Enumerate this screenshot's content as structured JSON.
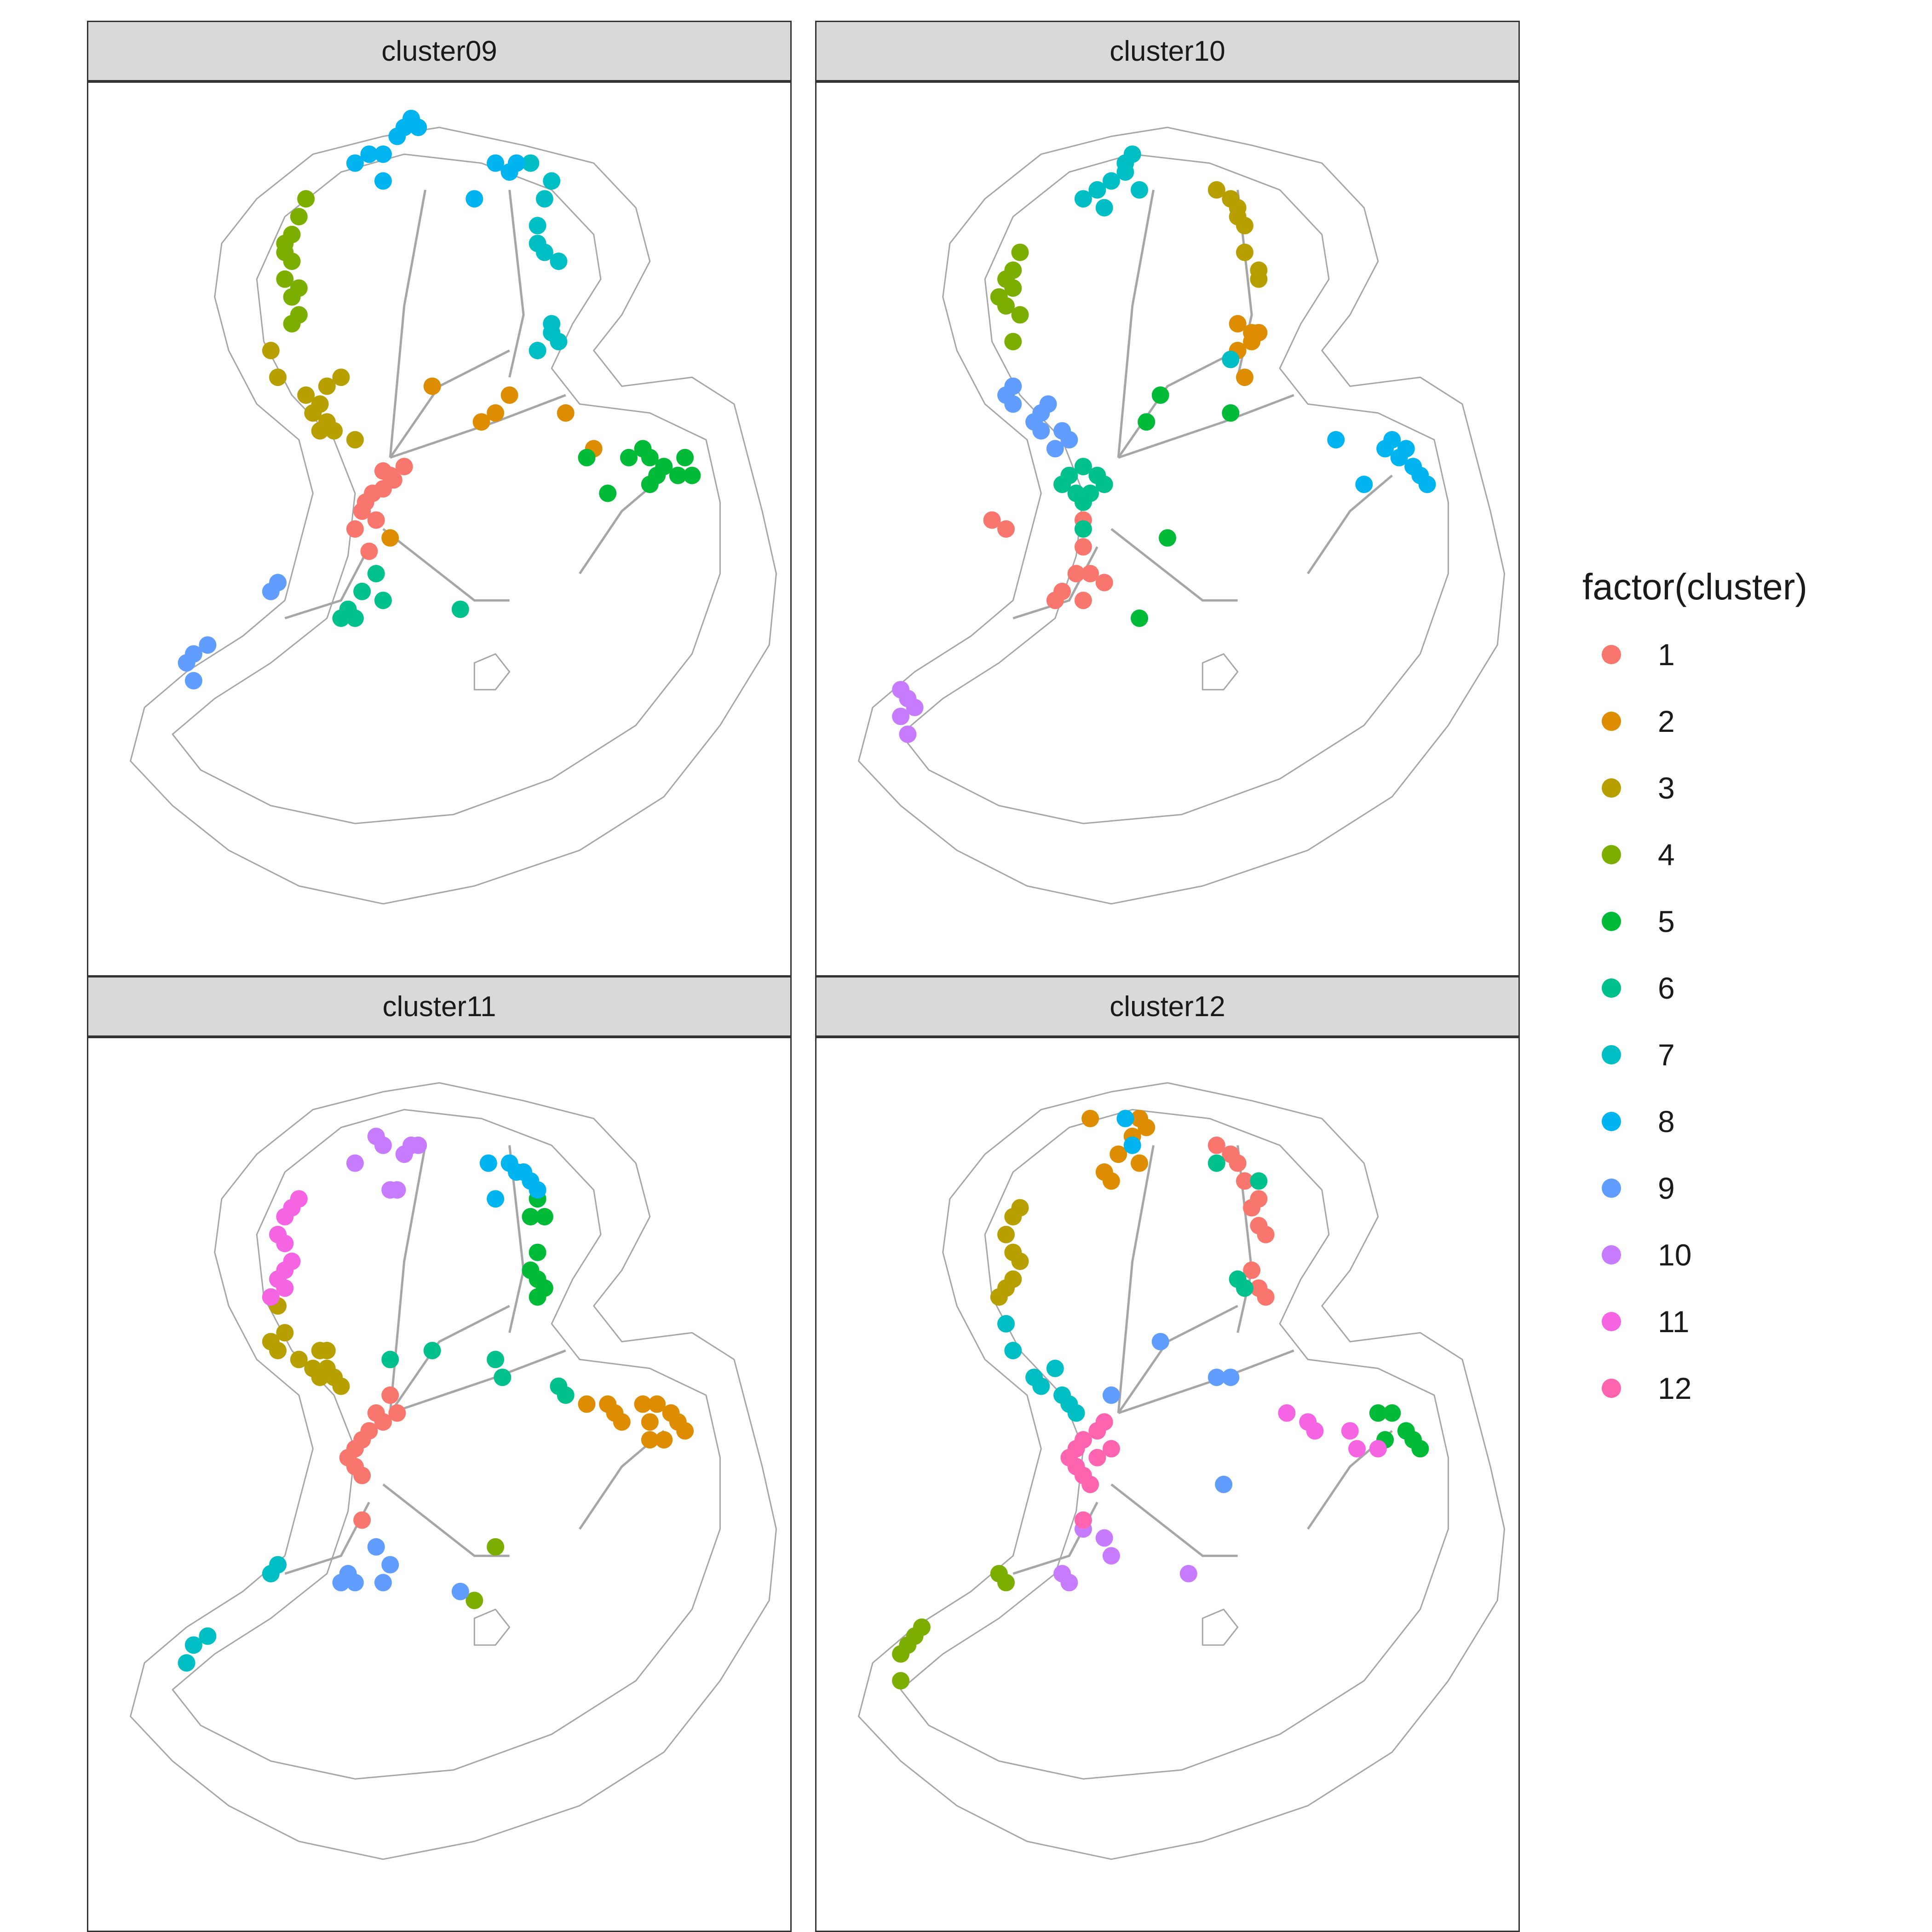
{
  "chart_data": {
    "type": "scatter",
    "facet_by": "cluster",
    "legend": {
      "title": "factor(cluster)",
      "position": "right",
      "items": [
        {
          "label": "1",
          "color": "#F8766D"
        },
        {
          "label": "2",
          "color": "#DE8C00"
        },
        {
          "label": "3",
          "color": "#B79F00"
        },
        {
          "label": "4",
          "color": "#7CAE00"
        },
        {
          "label": "5",
          "color": "#00BA38"
        },
        {
          "label": "6",
          "color": "#00C08B"
        },
        {
          "label": "7",
          "color": "#00BFC4"
        },
        {
          "label": "8",
          "color": "#00B4F0"
        },
        {
          "label": "9",
          "color": "#619CFF"
        },
        {
          "label": "10",
          "color": "#C77CFF"
        },
        {
          "label": "11",
          "color": "#F564E3"
        },
        {
          "label": "12",
          "color": "#FF64B0"
        }
      ]
    },
    "base_map": {
      "outline_color": "#a6a6a6"
    },
    "grid": false,
    "panels": [
      {
        "title": "cluster09",
        "groups": [
          {
            "cluster": "1",
            "x": [
              0.435,
              0.42,
              0.405,
              0.395,
              0.39,
              0.41,
              0.43,
              0.45,
              0.42,
              0.38,
              0.4
            ],
            "y": [
              0.445,
              0.455,
              0.46,
              0.47,
              0.48,
              0.49,
              0.44,
              0.43,
              0.435,
              0.5,
              0.525
            ]
          },
          {
            "cluster": "2",
            "x": [
              0.49,
              0.58,
              0.6,
              0.56,
              0.68,
              0.72,
              0.43
            ],
            "y": [
              0.34,
              0.37,
              0.35,
              0.38,
              0.37,
              0.41,
              0.51
            ]
          },
          {
            "cluster": "3",
            "x": [
              0.26,
              0.27,
              0.31,
              0.33,
              0.34,
              0.36,
              0.34,
              0.35,
              0.32,
              0.33,
              0.38
            ],
            "y": [
              0.3,
              0.33,
              0.35,
              0.36,
              0.34,
              0.33,
              0.38,
              0.39,
              0.37,
              0.39,
              0.4
            ]
          },
          {
            "cluster": "4",
            "x": [
              0.31,
              0.3,
              0.29,
              0.28,
              0.29,
              0.28,
              0.3,
              0.29,
              0.28,
              0.29,
              0.3
            ],
            "y": [
              0.13,
              0.15,
              0.17,
              0.18,
              0.2,
              0.22,
              0.23,
              0.24,
              0.19,
              0.27,
              0.26
            ]
          },
          {
            "cluster": "5",
            "x": [
              0.71,
              0.77,
              0.79,
              0.8,
              0.81,
              0.82,
              0.86,
              0.84,
              0.85,
              0.8,
              0.74
            ],
            "y": [
              0.42,
              0.42,
              0.41,
              0.42,
              0.44,
              0.43,
              0.44,
              0.44,
              0.42,
              0.45,
              0.46
            ]
          },
          {
            "cluster": "6",
            "x": [
              0.41,
              0.39,
              0.42,
              0.36,
              0.37,
              0.38,
              0.53
            ],
            "y": [
              0.55,
              0.57,
              0.58,
              0.6,
              0.59,
              0.6,
              0.59
            ]
          },
          {
            "cluster": "7",
            "x": [
              0.63,
              0.66,
              0.65,
              0.64,
              0.64,
              0.65,
              0.67,
              0.66,
              0.67,
              0.66,
              0.64
            ],
            "y": [
              0.09,
              0.11,
              0.13,
              0.16,
              0.18,
              0.19,
              0.2,
              0.27,
              0.29,
              0.28,
              0.3
            ]
          },
          {
            "cluster": "8",
            "x": [
              0.38,
              0.4,
              0.42,
              0.44,
              0.45,
              0.46,
              0.47,
              0.42,
              0.58,
              0.61,
              0.6,
              0.55
            ],
            "y": [
              0.09,
              0.08,
              0.08,
              0.06,
              0.05,
              0.04,
              0.05,
              0.11,
              0.09,
              0.09,
              0.1,
              0.13
            ]
          },
          {
            "cluster": "9",
            "x": [
              0.26,
              0.27,
              0.17,
              0.15,
              0.14,
              0.15
            ],
            "y": [
              0.57,
              0.56,
              0.63,
              0.64,
              0.65,
              0.67
            ]
          }
        ]
      },
      {
        "title": "cluster10",
        "groups": [
          {
            "cluster": "1",
            "x": [
              0.27,
              0.25,
              0.37,
              0.38,
              0.38,
              0.34,
              0.35,
              0.39,
              0.41,
              0.38
            ],
            "y": [
              0.5,
              0.49,
              0.55,
              0.52,
              0.49,
              0.58,
              0.57,
              0.55,
              0.56,
              0.58
            ]
          },
          {
            "cluster": "2",
            "x": [
              0.6,
              0.62,
              0.63,
              0.62,
              0.6,
              0.61
            ],
            "y": [
              0.27,
              0.28,
              0.28,
              0.29,
              0.3,
              0.33
            ]
          },
          {
            "cluster": "3",
            "x": [
              0.57,
              0.59,
              0.6,
              0.61,
              0.61,
              0.63,
              0.63,
              0.6
            ],
            "y": [
              0.12,
              0.13,
              0.15,
              0.16,
              0.19,
              0.21,
              0.22,
              0.14
            ]
          },
          {
            "cluster": "4",
            "x": [
              0.29,
              0.28,
              0.27,
              0.26,
              0.27,
              0.28,
              0.29,
              0.28
            ],
            "y": [
              0.19,
              0.21,
              0.22,
              0.24,
              0.25,
              0.23,
              0.26,
              0.29
            ]
          },
          {
            "cluster": "5",
            "x": [
              0.49,
              0.47,
              0.59,
              0.5,
              0.46
            ],
            "y": [
              0.35,
              0.38,
              0.37,
              0.51,
              0.6
            ]
          },
          {
            "cluster": "6",
            "x": [
              0.38,
              0.37,
              0.35,
              0.36,
              0.38,
              0.39,
              0.4,
              0.41,
              0.38
            ],
            "y": [
              0.43,
              0.46,
              0.45,
              0.44,
              0.47,
              0.46,
              0.44,
              0.45,
              0.5
            ]
          },
          {
            "cluster": "7",
            "x": [
              0.41,
              0.4,
              0.42,
              0.44,
              0.44,
              0.45,
              0.38,
              0.46,
              0.59
            ],
            "y": [
              0.14,
              0.12,
              0.11,
              0.1,
              0.09,
              0.08,
              0.13,
              0.12,
              0.31
            ]
          },
          {
            "cluster": "8",
            "x": [
              0.74,
              0.81,
              0.82,
              0.84,
              0.85,
              0.83,
              0.86,
              0.87,
              0.78
            ],
            "y": [
              0.4,
              0.41,
              0.4,
              0.41,
              0.43,
              0.42,
              0.44,
              0.45,
              0.45
            ]
          },
          {
            "cluster": "9",
            "x": [
              0.28,
              0.27,
              0.28,
              0.31,
              0.32,
              0.33,
              0.32,
              0.35,
              0.36,
              0.34
            ],
            "y": [
              0.34,
              0.35,
              0.36,
              0.38,
              0.37,
              0.36,
              0.39,
              0.39,
              0.4,
              0.41
            ]
          },
          {
            "cluster": "10",
            "x": [
              0.12,
              0.13,
              0.14,
              0.12,
              0.13
            ],
            "y": [
              0.68,
              0.69,
              0.7,
              0.71,
              0.73
            ]
          }
        ]
      },
      {
        "title": "cluster11",
        "groups": [
          {
            "cluster": "1",
            "x": [
              0.41,
              0.42,
              0.4,
              0.39,
              0.38,
              0.37,
              0.38,
              0.39,
              0.43,
              0.44,
              0.42,
              0.39
            ],
            "y": [
              0.42,
              0.43,
              0.44,
              0.45,
              0.46,
              0.47,
              0.48,
              0.49,
              0.4,
              0.42,
              0.43,
              0.54
            ]
          },
          {
            "cluster": "2",
            "x": [
              0.71,
              0.74,
              0.75,
              0.79,
              0.81,
              0.8,
              0.83,
              0.84,
              0.85,
              0.82,
              0.8,
              0.76
            ],
            "y": [
              0.41,
              0.41,
              0.42,
              0.41,
              0.41,
              0.43,
              0.42,
              0.43,
              0.44,
              0.45,
              0.45,
              0.43
            ]
          },
          {
            "cluster": "3",
            "x": [
              0.27,
              0.28,
              0.26,
              0.27,
              0.3,
              0.33,
              0.34,
              0.35,
              0.33,
              0.32,
              0.34,
              0.36
            ],
            "y": [
              0.3,
              0.33,
              0.34,
              0.35,
              0.36,
              0.35,
              0.37,
              0.38,
              0.38,
              0.37,
              0.35,
              0.39
            ]
          },
          {
            "cluster": "4",
            "x": [
              0.58,
              0.55
            ],
            "y": [
              0.57,
              0.63
            ]
          },
          {
            "cluster": "5",
            "x": [
              0.64,
              0.63,
              0.65,
              0.64,
              0.63,
              0.64,
              0.65,
              0.64
            ],
            "y": [
              0.18,
              0.2,
              0.2,
              0.24,
              0.26,
              0.27,
              0.28,
              0.29
            ]
          },
          {
            "cluster": "6",
            "x": [
              0.43,
              0.49,
              0.58,
              0.59,
              0.67,
              0.68
            ],
            "y": [
              0.36,
              0.35,
              0.36,
              0.38,
              0.39,
              0.4
            ]
          },
          {
            "cluster": "7",
            "x": [
              0.26,
              0.27,
              0.17,
              0.15,
              0.14
            ],
            "y": [
              0.6,
              0.59,
              0.67,
              0.68,
              0.7
            ]
          },
          {
            "cluster": "8",
            "x": [
              0.57,
              0.6,
              0.61,
              0.62,
              0.63,
              0.64,
              0.58
            ],
            "y": [
              0.14,
              0.14,
              0.15,
              0.15,
              0.16,
              0.17,
              0.18
            ]
          },
          {
            "cluster": "9",
            "x": [
              0.41,
              0.43,
              0.42,
              0.37,
              0.36,
              0.38,
              0.53
            ],
            "y": [
              0.57,
              0.59,
              0.61,
              0.6,
              0.61,
              0.61,
              0.62
            ]
          },
          {
            "cluster": "10",
            "x": [
              0.38,
              0.41,
              0.42,
              0.45,
              0.46,
              0.47,
              0.43,
              0.44
            ],
            "y": [
              0.14,
              0.11,
              0.12,
              0.13,
              0.12,
              0.12,
              0.17,
              0.17
            ]
          },
          {
            "cluster": "11",
            "x": [
              0.3,
              0.29,
              0.28,
              0.27,
              0.28,
              0.29,
              0.28,
              0.27,
              0.26,
              0.28
            ],
            "y": [
              0.18,
              0.19,
              0.2,
              0.22,
              0.23,
              0.25,
              0.26,
              0.27,
              0.29,
              0.28
            ]
          }
        ]
      },
      {
        "title": "cluster12",
        "groups": [
          {
            "cluster": "1",
            "x": [
              0.57,
              0.59,
              0.6,
              0.61,
              0.63,
              0.62,
              0.63,
              0.64,
              0.62,
              0.63,
              0.64
            ],
            "y": [
              0.12,
              0.13,
              0.14,
              0.16,
              0.18,
              0.19,
              0.21,
              0.22,
              0.26,
              0.28,
              0.29
            ]
          },
          {
            "cluster": "2",
            "x": [
              0.39,
              0.43,
              0.47,
              0.46,
              0.45,
              0.42,
              0.41,
              0.46
            ],
            "y": [
              0.09,
              0.13,
              0.1,
              0.09,
              0.11,
              0.16,
              0.15,
              0.14
            ]
          },
          {
            "cluster": "3",
            "x": [
              0.29,
              0.28,
              0.27,
              0.28,
              0.29,
              0.28,
              0.27,
              0.26
            ],
            "y": [
              0.19,
              0.2,
              0.22,
              0.24,
              0.25,
              0.27,
              0.28,
              0.29
            ]
          },
          {
            "cluster": "4",
            "x": [
              0.26,
              0.27,
              0.15,
              0.14,
              0.13,
              0.12,
              0.12
            ],
            "y": [
              0.6,
              0.61,
              0.66,
              0.67,
              0.68,
              0.69,
              0.72
            ]
          },
          {
            "cluster": "5",
            "x": [
              0.8,
              0.82,
              0.81,
              0.84,
              0.85,
              0.86
            ],
            "y": [
              0.42,
              0.42,
              0.45,
              0.44,
              0.45,
              0.46
            ]
          },
          {
            "cluster": "6",
            "x": [
              0.57,
              0.63,
              0.6,
              0.61
            ],
            "y": [
              0.14,
              0.16,
              0.27,
              0.28
            ]
          },
          {
            "cluster": "7",
            "x": [
              0.27,
              0.28,
              0.31,
              0.32,
              0.34,
              0.35,
              0.36,
              0.37
            ],
            "y": [
              0.32,
              0.35,
              0.38,
              0.39,
              0.37,
              0.4,
              0.41,
              0.42
            ]
          },
          {
            "cluster": "8",
            "x": [
              0.44,
              0.45
            ],
            "y": [
              0.09,
              0.12
            ]
          },
          {
            "cluster": "9",
            "x": [
              0.49,
              0.42,
              0.59,
              0.57,
              0.58
            ],
            "y": [
              0.34,
              0.4,
              0.38,
              0.38,
              0.5
            ]
          },
          {
            "cluster": "10",
            "x": [
              0.38,
              0.41,
              0.42,
              0.35,
              0.36,
              0.53
            ],
            "y": [
              0.55,
              0.56,
              0.58,
              0.6,
              0.61,
              0.6
            ]
          },
          {
            "cluster": "11",
            "x": [
              0.67,
              0.7,
              0.71,
              0.76,
              0.8,
              0.77
            ],
            "y": [
              0.42,
              0.43,
              0.44,
              0.44,
              0.46,
              0.46
            ]
          },
          {
            "cluster": "12",
            "x": [
              0.41,
              0.4,
              0.38,
              0.37,
              0.36,
              0.37,
              0.38,
              0.39,
              0.4,
              0.42,
              0.38
            ],
            "y": [
              0.43,
              0.44,
              0.45,
              0.46,
              0.47,
              0.48,
              0.49,
              0.5,
              0.47,
              0.46,
              0.54
            ]
          }
        ]
      }
    ]
  }
}
